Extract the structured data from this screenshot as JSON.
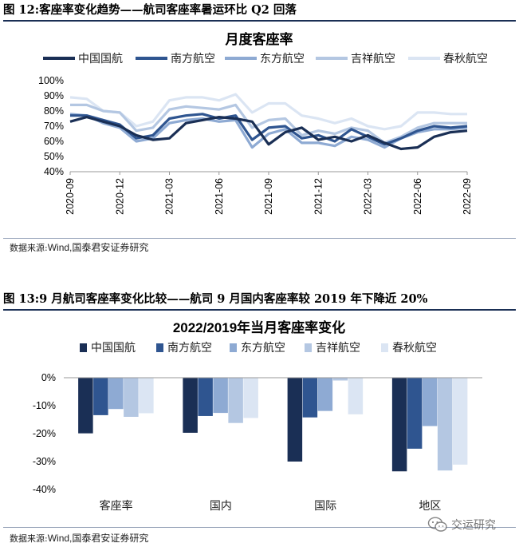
{
  "figure12": {
    "caption": "图 12:客座率变化趋势——航司客座率暑运环比 Q2 回落",
    "source_label": "数据来源:",
    "source_value": "Wind,国泰君安证券研究"
  },
  "figure13": {
    "caption": "图 13:9 月航司客座率变化比较——航司 9 月国内客座率较 2019 年下降近 20%",
    "source_label": "数据来源:",
    "source_value": "Wind,国泰君安证券研究"
  },
  "watermark": {
    "text": "交运研究"
  },
  "colors": [
    "#1a2f55",
    "#2f5590",
    "#8eaad3",
    "#b4c7e2",
    "#dbe5f3"
  ],
  "chart_data": [
    {
      "type": "line",
      "title": "月度客座率",
      "ylim": [
        0.4,
        1.0
      ],
      "yticks": [
        0.4,
        0.5,
        0.6,
        0.7,
        0.8,
        0.9,
        1.0
      ],
      "ytick_labels": [
        "40%",
        "50%",
        "60%",
        "70%",
        "80%",
        "90%",
        "100%"
      ],
      "x": [
        "2020-09",
        "2020-10",
        "2020-11",
        "2020-12",
        "2021-01",
        "2021-02",
        "2021-03",
        "2021-04",
        "2021-05",
        "2021-06",
        "2021-07",
        "2021-08",
        "2021-09",
        "2021-10",
        "2021-11",
        "2021-12",
        "2022-01",
        "2022-02",
        "2022-03",
        "2022-04",
        "2022-05",
        "2022-06",
        "2022-07",
        "2022-08",
        "2022-09"
      ],
      "xtick_labels": [
        "2020-09",
        "2020-12",
        "2021-03",
        "2021-06",
        "2021-09",
        "2021-12",
        "2022-03",
        "2022-06",
        "2022-09"
      ],
      "xtick_index": [
        0,
        3,
        6,
        9,
        12,
        15,
        18,
        21,
        24
      ],
      "legend_position": "top",
      "series": [
        {
          "name": "中国国航",
          "values": [
            0.73,
            0.76,
            0.73,
            0.7,
            0.64,
            0.61,
            0.62,
            0.72,
            0.74,
            0.76,
            0.75,
            0.73,
            0.58,
            0.66,
            0.69,
            0.61,
            0.63,
            0.6,
            0.64,
            0.59,
            0.55,
            0.56,
            0.63,
            0.66,
            0.67
          ]
        },
        {
          "name": "南方航空",
          "values": [
            0.77,
            0.77,
            0.74,
            0.71,
            0.62,
            0.64,
            0.75,
            0.77,
            0.78,
            0.75,
            0.77,
            0.61,
            0.69,
            0.7,
            0.62,
            0.64,
            0.6,
            0.68,
            0.63,
            0.58,
            0.62,
            0.67,
            0.7,
            0.69,
            0.7
          ]
        },
        {
          "name": "东方航空",
          "values": [
            0.78,
            0.77,
            0.72,
            0.69,
            0.6,
            0.62,
            0.72,
            0.74,
            0.75,
            0.73,
            0.74,
            0.56,
            0.65,
            0.68,
            0.59,
            0.59,
            0.57,
            0.63,
            0.61,
            0.56,
            0.62,
            0.66,
            0.68,
            0.68,
            0.69
          ]
        },
        {
          "name": "吉祥航空",
          "values": [
            0.84,
            0.84,
            0.8,
            0.79,
            0.67,
            0.69,
            0.81,
            0.83,
            0.82,
            0.81,
            0.84,
            0.69,
            0.74,
            0.75,
            0.64,
            0.67,
            0.65,
            0.69,
            0.67,
            0.59,
            0.63,
            0.69,
            0.72,
            0.72,
            0.72
          ]
        },
        {
          "name": "春秋航空",
          "values": [
            0.89,
            0.88,
            0.8,
            0.79,
            0.7,
            0.73,
            0.87,
            0.89,
            0.89,
            0.87,
            0.91,
            0.79,
            0.85,
            0.85,
            0.77,
            0.75,
            0.72,
            0.75,
            0.7,
            0.68,
            0.7,
            0.79,
            0.79,
            0.78,
            0.78
          ]
        }
      ]
    },
    {
      "type": "bar",
      "title": "2022/2019年当月客座率变化",
      "categories": [
        "客座率",
        "国内",
        "国际",
        "地区"
      ],
      "ylim": [
        -0.4,
        0.0
      ],
      "yticks": [
        0.0,
        -0.1,
        -0.2,
        -0.3,
        -0.4
      ],
      "ytick_labels": [
        "0%",
        "-10%",
        "-20%",
        "-30%",
        "-40%"
      ],
      "legend_position": "top",
      "series": [
        {
          "name": "中国国航",
          "values": [
            -0.199,
            -0.197,
            -0.3,
            -0.335
          ]
        },
        {
          "name": "南方航空",
          "values": [
            -0.134,
            -0.137,
            -0.142,
            -0.254
          ]
        },
        {
          "name": "东方航空",
          "values": [
            -0.112,
            -0.126,
            -0.119,
            -0.173
          ]
        },
        {
          "name": "吉祥航空",
          "values": [
            -0.14,
            -0.162,
            -0.01,
            -0.332
          ]
        },
        {
          "name": "春秋航空",
          "values": [
            -0.127,
            -0.144,
            -0.131,
            -0.311
          ]
        }
      ]
    }
  ]
}
